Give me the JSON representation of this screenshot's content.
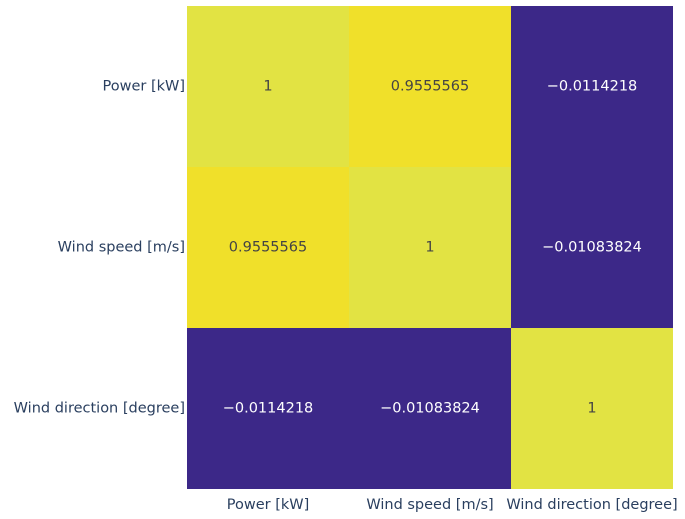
{
  "chart_data": {
    "type": "heatmap",
    "title": "",
    "x_categories": [
      "Power [kW]",
      "Wind speed [m/s]",
      "Wind direction [degree]"
    ],
    "y_categories": [
      "Power [kW]",
      "Wind speed [m/s]",
      "Wind direction [degree]"
    ],
    "z": [
      [
        1,
        0.9555565,
        -0.0114218
      ],
      [
        0.9555565,
        1,
        -0.01083824
      ],
      [
        -0.0114218,
        -0.01083824,
        1
      ]
    ],
    "text": [
      [
        "1",
        "0.9555565",
        "−0.0114218"
      ],
      [
        "0.9555565",
        "1",
        "−0.01083824"
      ],
      [
        "−0.0114218",
        "−0.01083824",
        "1"
      ]
    ],
    "colorscale": "Plasma",
    "colors": {
      "high": "#f0e02a",
      "diagonal": "#e2e343",
      "low": "#3c2888",
      "label_on_light": "#444444",
      "label_on_dark": "#ffffff"
    },
    "showscale": false
  }
}
